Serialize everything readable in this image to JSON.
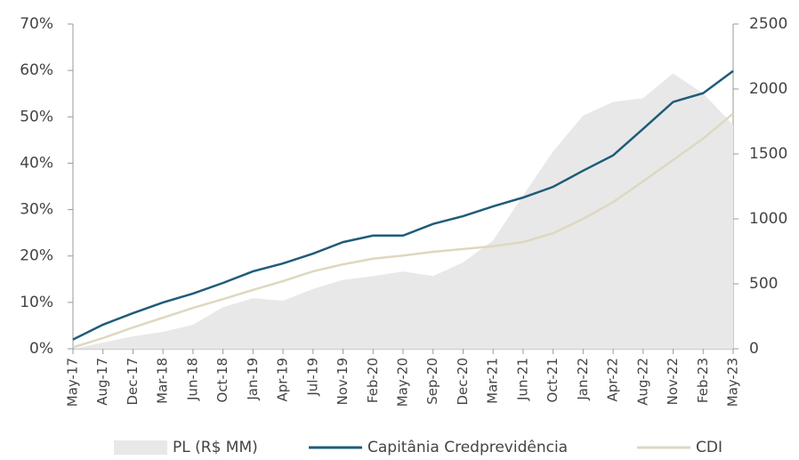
{
  "chart_data": {
    "type": "line",
    "categories": [
      "May-17",
      "Aug-17",
      "Dec-17",
      "Mar-18",
      "Jun-18",
      "Oct-18",
      "Jan-19",
      "Apr-19",
      "Jul-19",
      "Nov-19",
      "Feb-20",
      "May-20",
      "Sep-20",
      "Dec-20",
      "Mar-21",
      "Jun-21",
      "Oct-21",
      "Jan-22",
      "Apr-22",
      "Aug-22",
      "Nov-22",
      "Feb-23",
      "May-23"
    ],
    "series": [
      {
        "name": "PL (R$ MM)",
        "color": "#e8e8e8",
        "type": "area",
        "axis": "y2",
        "values": [
          0,
          48,
          96,
          130,
          185,
          320,
          390,
          370,
          460,
          530,
          560,
          595,
          560,
          665,
          835,
          1180,
          1520,
          1795,
          1900,
          1930,
          2120,
          1965,
          1725
        ]
      },
      {
        "name": "Capitânia Credprevidência",
        "color": "#1f5c78",
        "type": "line",
        "values": [
          2,
          5.2,
          7.7,
          10,
          11.9,
          14.2,
          16.7,
          18.4,
          20.5,
          23,
          24.4,
          24.4,
          26.9,
          28.6,
          30.7,
          32.6,
          34.9,
          38.4,
          41.7,
          47.4,
          53.2,
          55.1,
          59.9
        ]
      },
      {
        "name": "CDI",
        "color": "#ddd8c0",
        "type": "line",
        "values": [
          0.3,
          2.3,
          4.6,
          6.7,
          8.8,
          10.7,
          12.7,
          14.6,
          16.7,
          18.2,
          19.4,
          20.1,
          20.9,
          21.5,
          22.1,
          23,
          24.9,
          28,
          31.6,
          36.1,
          40.7,
          45.3,
          50.7
        ]
      }
    ],
    "ylim": [
      0,
      70
    ],
    "yticks": [
      {
        "value": 0,
        "label": "0%"
      },
      {
        "value": 10,
        "label": "10%"
      },
      {
        "value": 20,
        "label": "20%"
      },
      {
        "value": 30,
        "label": "30%"
      },
      {
        "value": 40,
        "label": "40%"
      },
      {
        "value": 50,
        "label": "50%"
      },
      {
        "value": 60,
        "label": "60%"
      },
      {
        "value": 70,
        "label": "70%"
      }
    ],
    "y2lim": [
      0,
      2500
    ],
    "y2ticks": [
      0,
      500,
      1000,
      1500,
      2000,
      2500
    ],
    "legend": "bottom"
  }
}
